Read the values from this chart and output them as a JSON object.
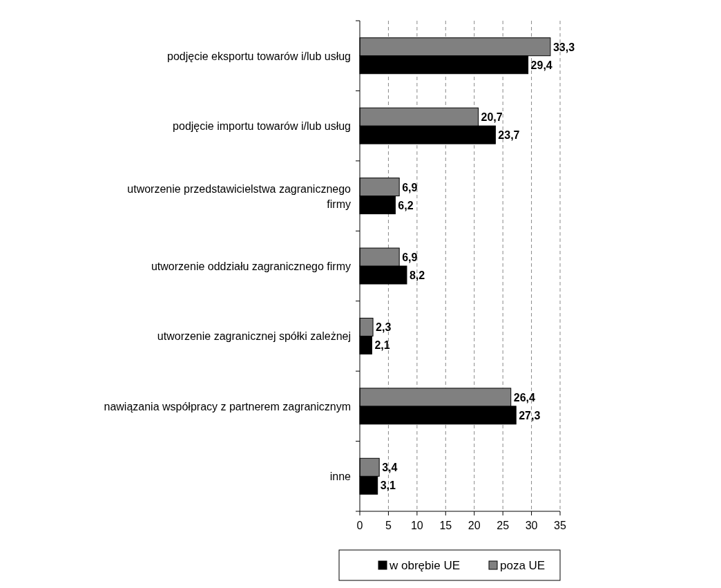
{
  "chart_data": {
    "type": "bar",
    "orientation": "horizontal",
    "categories": [
      "podjęcie eksportu towarów i/lub usług",
      "podjęcie importu towarów i/lub usług",
      "utworzenie przedstawicielstwa zagranicznego firmy",
      "utworzenie oddziału zagranicznego firmy",
      "utworzenie zagranicznej spółki zależnej",
      "nawiązania współpracy z partnerem zagranicznym",
      "inne"
    ],
    "series": [
      {
        "name": "w obrębie UE",
        "color": "#000000",
        "values": [
          29.4,
          23.7,
          6.2,
          8.2,
          2.1,
          27.3,
          3.1
        ],
        "value_labels": [
          "29,4",
          "23,7",
          "6,2",
          "8,2",
          "2,1",
          "27,3",
          "3,1"
        ]
      },
      {
        "name": "poza UE",
        "color": "#808080",
        "values": [
          33.3,
          20.7,
          6.9,
          6.9,
          2.3,
          26.4,
          3.4
        ],
        "value_labels": [
          "33,3",
          "20,7",
          "6,9",
          "6,9",
          "2,3",
          "26,4",
          "3,4"
        ]
      }
    ],
    "xlim": [
      0,
      35
    ],
    "xticks": [
      0,
      5,
      10,
      15,
      20,
      25,
      30,
      35
    ],
    "grid": "x",
    "legend": "bottom"
  }
}
